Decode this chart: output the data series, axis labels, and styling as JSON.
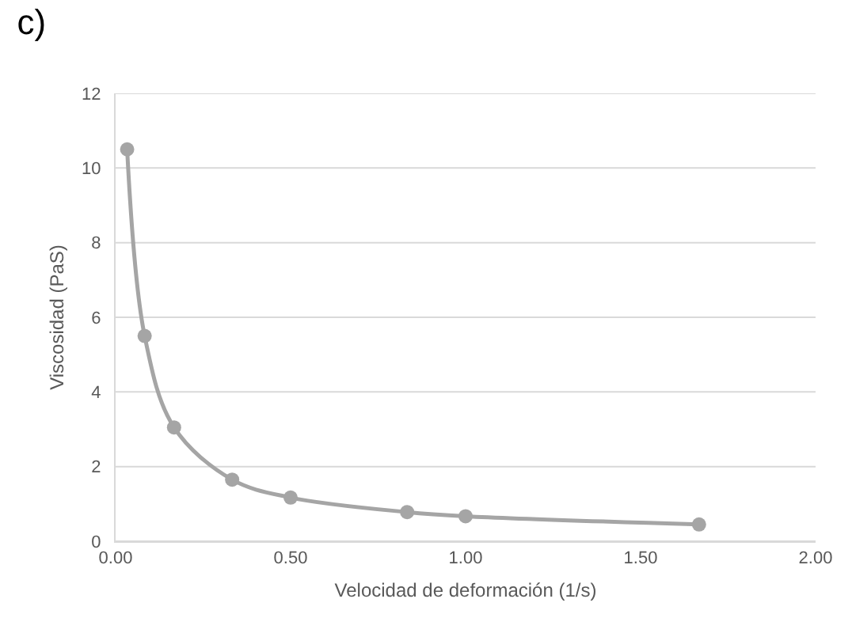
{
  "chart_data": {
    "type": "line",
    "title": "c)",
    "xlabel": "Velocidad de deformación (1/s)",
    "ylabel": "Viscosidad (PaS)",
    "x": [
      0.033,
      0.083,
      0.167,
      0.333,
      0.5,
      0.833,
      1.0,
      1.667
    ],
    "series": [
      {
        "color": "#a5a5a5",
        "values": [
          10.5,
          5.5,
          3.05,
          1.65,
          1.17,
          0.78,
          0.67,
          0.45
        ]
      }
    ],
    "xlim": [
      0,
      2
    ],
    "xticks": [
      {
        "value": 0,
        "label": "0.00"
      },
      {
        "value": 0.5,
        "label": "0.50"
      },
      {
        "value": 1,
        "label": "1.00"
      },
      {
        "value": 1.5,
        "label": "1.50"
      },
      {
        "value": 2,
        "label": "2.00"
      }
    ],
    "ylim": [
      0,
      12
    ],
    "yticks": [
      0,
      2,
      4,
      6,
      8,
      10,
      12
    ],
    "grid": "y",
    "marker": "circle",
    "line_style": "solid"
  }
}
